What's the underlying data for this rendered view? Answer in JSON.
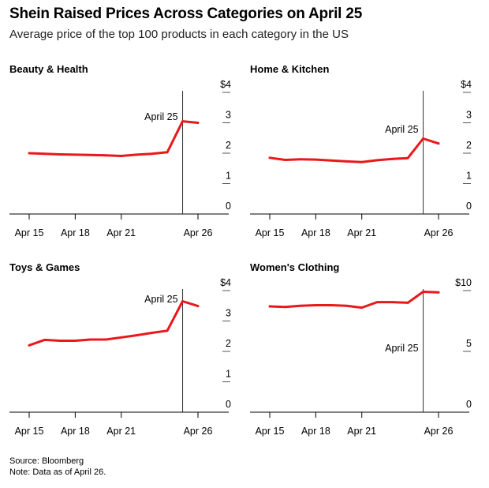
{
  "header": {
    "title": "Shein Raised Prices Across Categories on April 25",
    "subtitle": "Average price of the top 100 products in each category in the US"
  },
  "footer": {
    "source": "Source: Bloomberg",
    "note": "Note: Data as of April 26."
  },
  "colors": {
    "series": "#e8191c",
    "axis": "#000000",
    "ytick_line": "#555555"
  },
  "chart_data": [
    {
      "type": "line",
      "title": "Beauty & Health",
      "x": [
        "Apr 15",
        "Apr 16",
        "Apr 17",
        "Apr 18",
        "Apr 19",
        "Apr 20",
        "Apr 21",
        "Apr 22",
        "Apr 23",
        "Apr 24",
        "Apr 25",
        "Apr 26"
      ],
      "x_ticks": [
        "Apr 15",
        "Apr 18",
        "Apr 21",
        "Apr 26"
      ],
      "values": [
        2.0,
        1.98,
        1.96,
        1.95,
        1.94,
        1.93,
        1.91,
        1.95,
        1.98,
        2.03,
        3.05,
        3.0
      ],
      "ylim": [
        0,
        4
      ],
      "y_ticks": [
        0,
        1,
        2,
        3,
        4
      ],
      "y_tick_labels": [
        "0",
        "1",
        "2",
        "3",
        "$4"
      ],
      "annotation": {
        "x": "Apr 25",
        "label": "April 25"
      },
      "grid": false
    },
    {
      "type": "line",
      "title": "Home & Kitchen",
      "x": [
        "Apr 15",
        "Apr 16",
        "Apr 17",
        "Apr 18",
        "Apr 19",
        "Apr 20",
        "Apr 21",
        "Apr 22",
        "Apr 23",
        "Apr 24",
        "Apr 25",
        "Apr 26"
      ],
      "x_ticks": [
        "Apr 15",
        "Apr 18",
        "Apr 21",
        "Apr 26"
      ],
      "values": [
        1.85,
        1.78,
        1.8,
        1.79,
        1.76,
        1.73,
        1.71,
        1.77,
        1.81,
        1.84,
        2.48,
        2.32
      ],
      "ylim": [
        0,
        4
      ],
      "y_ticks": [
        0,
        1,
        2,
        3,
        4
      ],
      "y_tick_labels": [
        "0",
        "1",
        "2",
        "3",
        "$4"
      ],
      "annotation": {
        "x": "Apr 25",
        "label": "April 25"
      },
      "grid": false
    },
    {
      "type": "line",
      "title": "Toys & Games",
      "x": [
        "Apr 15",
        "Apr 16",
        "Apr 17",
        "Apr 18",
        "Apr 19",
        "Apr 20",
        "Apr 21",
        "Apr 22",
        "Apr 23",
        "Apr 24",
        "Apr 25",
        "Apr 26"
      ],
      "x_ticks": [
        "Apr 15",
        "Apr 18",
        "Apr 21",
        "Apr 26"
      ],
      "values": [
        2.2,
        2.38,
        2.35,
        2.35,
        2.39,
        2.39,
        2.46,
        2.53,
        2.61,
        2.68,
        3.65,
        3.49
      ],
      "ylim": [
        0,
        4
      ],
      "y_ticks": [
        0,
        1,
        2,
        3,
        4
      ],
      "y_tick_labels": [
        "0",
        "1",
        "2",
        "3",
        "$4"
      ],
      "annotation": {
        "x": "Apr 25",
        "label": "April 25"
      },
      "grid": false
    },
    {
      "type": "line",
      "title": "Women's Clothing",
      "x": [
        "Apr 15",
        "Apr 16",
        "Apr 17",
        "Apr 18",
        "Apr 19",
        "Apr 20",
        "Apr 21",
        "Apr 22",
        "Apr 23",
        "Apr 24",
        "Apr 25",
        "Apr 26"
      ],
      "x_ticks": [
        "Apr 15",
        "Apr 18",
        "Apr 21",
        "Apr 26"
      ],
      "values": [
        8.7,
        8.65,
        8.75,
        8.8,
        8.8,
        8.75,
        8.6,
        9.05,
        9.05,
        9.0,
        9.9,
        9.85
      ],
      "ylim": [
        0,
        10
      ],
      "y_ticks": [
        0,
        5,
        10
      ],
      "y_tick_labels": [
        "0",
        "5",
        "$10"
      ],
      "annotation": {
        "x": "Apr 25",
        "label": "April 25"
      },
      "grid": false
    }
  ]
}
